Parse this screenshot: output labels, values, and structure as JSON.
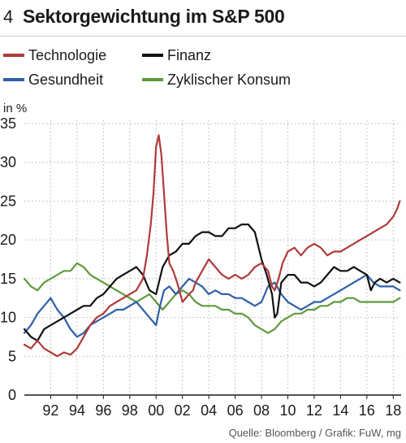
{
  "header": {
    "figure_number": "4",
    "title": "Sektorgewichtung im S&P 500"
  },
  "source": "Quelle: Bloomberg / Grafik: FuW, mg",
  "colors": {
    "tech": "#b03a3a",
    "finance": "#111111",
    "health": "#2f5fa8",
    "consumer": "#5e9a3c",
    "grid": "#b5b5b5",
    "axis": "#1a1a1a"
  },
  "chart_data": {
    "type": "line",
    "title": "Sektorgewichtung im S&P 500",
    "ylabel": "in %",
    "xlabel": "",
    "xlim": [
      1990,
      2018.6
    ],
    "ylim": [
      0,
      35
    ],
    "yticks": [
      "0",
      "5",
      "10",
      "15",
      "20",
      "25",
      "30",
      "35"
    ],
    "xticks": [
      {
        "x": 1992,
        "label": "92"
      },
      {
        "x": 1994,
        "label": "94"
      },
      {
        "x": 1996,
        "label": "96"
      },
      {
        "x": 1998,
        "label": "98"
      },
      {
        "x": 2000,
        "label": "00"
      },
      {
        "x": 2002,
        "label": "02"
      },
      {
        "x": 2004,
        "label": "04"
      },
      {
        "x": 2006,
        "label": "06"
      },
      {
        "x": 2008,
        "label": "08"
      },
      {
        "x": 2010,
        "label": "10"
      },
      {
        "x": 2012,
        "label": "12"
      },
      {
        "x": 2014,
        "label": "14"
      },
      {
        "x": 2016,
        "label": "16"
      },
      {
        "x": 2018,
        "label": "18"
      }
    ],
    "grid": "dotted",
    "series": [
      {
        "name": "Technologie",
        "x": [
          1990.0,
          1990.5,
          1991.0,
          1991.5,
          1992.0,
          1992.5,
          1993.0,
          1993.5,
          1994.0,
          1994.5,
          1995.0,
          1995.5,
          1996.0,
          1996.5,
          1997.0,
          1997.5,
          1998.0,
          1998.5,
          1999.0,
          1999.3,
          1999.6,
          1999.8,
          2000.0,
          2000.2,
          2000.4,
          2000.6,
          2000.8,
          2001.0,
          2001.3,
          2001.6,
          2002.0,
          2002.5,
          2002.8,
          2003.0,
          2003.5,
          2004.0,
          2004.5,
          2005.0,
          2005.5,
          2006.0,
          2006.5,
          2007.0,
          2007.5,
          2008.0,
          2008.5,
          2008.8,
          2009.0,
          2009.3,
          2009.6,
          2010.0,
          2010.5,
          2011.0,
          2011.5,
          2012.0,
          2012.5,
          2013.0,
          2013.5,
          2014.0,
          2014.5,
          2015.0,
          2015.5,
          2016.0,
          2016.5,
          2017.0,
          2017.5,
          2018.0,
          2018.3,
          2018.5
        ],
        "y": [
          6.5,
          6.0,
          7.0,
          6.0,
          5.5,
          5.0,
          5.5,
          5.2,
          6.0,
          7.5,
          9.0,
          10.0,
          10.5,
          11.5,
          12.0,
          12.5,
          13.0,
          13.5,
          15.0,
          18.0,
          22.0,
          26.0,
          32.0,
          33.5,
          31.0,
          26.0,
          21.0,
          17.0,
          16.0,
          14.5,
          12.0,
          13.0,
          13.5,
          14.5,
          16.0,
          17.5,
          16.5,
          15.5,
          15.0,
          15.5,
          15.0,
          15.5,
          16.5,
          17.0,
          16.0,
          14.0,
          13.5,
          15.0,
          17.0,
          18.5,
          19.0,
          18.0,
          19.0,
          19.5,
          19.0,
          18.0,
          18.5,
          18.5,
          19.0,
          19.5,
          20.0,
          20.5,
          21.0,
          21.5,
          22.0,
          23.0,
          24.0,
          25.0
        ]
      },
      {
        "name": "Finanz",
        "x": [
          1990.0,
          1990.5,
          1991.0,
          1991.5,
          1992.0,
          1992.5,
          1993.0,
          1993.5,
          1994.0,
          1994.5,
          1995.0,
          1995.5,
          1996.0,
          1996.5,
          1997.0,
          1997.5,
          1998.0,
          1998.5,
          1999.0,
          1999.5,
          2000.0,
          2000.5,
          2001.0,
          2001.5,
          2002.0,
          2002.5,
          2003.0,
          2003.5,
          2004.0,
          2004.5,
          2005.0,
          2005.5,
          2006.0,
          2006.5,
          2007.0,
          2007.5,
          2008.0,
          2008.4,
          2008.8,
          2009.0,
          2009.2,
          2009.5,
          2010.0,
          2010.5,
          2011.0,
          2011.5,
          2012.0,
          2012.5,
          2013.0,
          2013.5,
          2014.0,
          2014.5,
          2015.0,
          2015.5,
          2016.0,
          2016.3,
          2016.6,
          2017.0,
          2017.5,
          2018.0,
          2018.5
        ],
        "y": [
          8.5,
          7.5,
          7.0,
          8.5,
          9.0,
          9.5,
          10.0,
          10.5,
          11.0,
          11.5,
          11.5,
          12.5,
          13.0,
          14.0,
          15.0,
          15.5,
          16.0,
          16.5,
          15.5,
          13.5,
          13.0,
          16.5,
          18.0,
          18.5,
          19.5,
          19.5,
          20.5,
          21.0,
          21.0,
          20.5,
          20.5,
          21.5,
          21.5,
          22.0,
          22.0,
          21.0,
          17.5,
          15.5,
          13.0,
          10.0,
          10.5,
          14.5,
          15.5,
          15.5,
          14.5,
          14.5,
          14.0,
          14.5,
          15.5,
          16.5,
          16.0,
          16.0,
          16.5,
          16.0,
          15.5,
          13.5,
          14.5,
          15.0,
          14.5,
          15.0,
          14.5
        ]
      },
      {
        "name": "Gesundheit",
        "x": [
          1990.0,
          1990.5,
          1991.0,
          1991.5,
          1992.0,
          1992.5,
          1993.0,
          1993.5,
          1994.0,
          1994.5,
          1995.0,
          1995.5,
          1996.0,
          1996.5,
          1997.0,
          1997.5,
          1998.0,
          1998.5,
          1999.0,
          1999.5,
          2000.0,
          2000.3,
          2000.6,
          2001.0,
          2001.5,
          2002.0,
          2002.5,
          2003.0,
          2003.5,
          2004.0,
          2004.5,
          2005.0,
          2005.5,
          2006.0,
          2006.5,
          2007.0,
          2007.5,
          2008.0,
          2008.5,
          2009.0,
          2009.5,
          2010.0,
          2010.5,
          2011.0,
          2011.5,
          2012.0,
          2012.5,
          2013.0,
          2013.5,
          2014.0,
          2014.5,
          2015.0,
          2015.5,
          2016.0,
          2016.5,
          2017.0,
          2017.5,
          2018.0,
          2018.5
        ],
        "y": [
          8.0,
          9.0,
          10.5,
          11.5,
          12.5,
          11.0,
          10.0,
          8.5,
          7.5,
          8.0,
          9.0,
          9.5,
          10.0,
          10.5,
          11.0,
          11.0,
          11.5,
          12.0,
          11.0,
          10.0,
          9.0,
          11.5,
          13.5,
          14.0,
          13.0,
          14.0,
          15.0,
          14.5,
          14.0,
          13.0,
          13.5,
          13.0,
          13.0,
          12.5,
          12.5,
          12.0,
          11.5,
          12.0,
          14.0,
          14.5,
          13.0,
          12.0,
          11.5,
          11.0,
          11.5,
          12.0,
          12.0,
          12.5,
          13.0,
          13.5,
          14.0,
          14.5,
          15.0,
          15.5,
          14.5,
          14.0,
          14.0,
          14.0,
          13.5
        ]
      },
      {
        "name": "Zyklischer Konsum",
        "x": [
          1990.0,
          1990.5,
          1991.0,
          1991.5,
          1992.0,
          1992.5,
          1993.0,
          1993.5,
          1994.0,
          1994.5,
          1995.0,
          1995.5,
          1996.0,
          1996.5,
          1997.0,
          1997.5,
          1998.0,
          1998.5,
          1999.0,
          1999.5,
          2000.0,
          2000.5,
          2001.0,
          2001.5,
          2002.0,
          2002.5,
          2003.0,
          2003.5,
          2004.0,
          2004.5,
          2005.0,
          2005.5,
          2006.0,
          2006.5,
          2007.0,
          2007.5,
          2008.0,
          2008.5,
          2009.0,
          2009.5,
          2010.0,
          2010.5,
          2011.0,
          2011.5,
          2012.0,
          2012.5,
          2013.0,
          2013.5,
          2014.0,
          2014.5,
          2015.0,
          2015.5,
          2016.0,
          2016.5,
          2017.0,
          2017.5,
          2018.0,
          2018.5
        ],
        "y": [
          15.0,
          14.0,
          13.5,
          14.5,
          15.0,
          15.5,
          16.0,
          16.0,
          17.0,
          16.5,
          15.5,
          15.0,
          14.5,
          14.0,
          13.5,
          13.0,
          12.5,
          12.0,
          12.5,
          13.0,
          12.0,
          11.0,
          12.0,
          13.0,
          13.5,
          13.0,
          12.0,
          11.5,
          11.5,
          11.5,
          11.0,
          11.0,
          10.5,
          10.5,
          10.0,
          9.0,
          8.5,
          8.0,
          8.5,
          9.5,
          10.0,
          10.5,
          10.5,
          11.0,
          11.0,
          11.5,
          11.5,
          12.0,
          12.0,
          12.5,
          12.5,
          12.0,
          12.0,
          12.0,
          12.0,
          12.0,
          12.0,
          12.5
        ]
      }
    ]
  }
}
